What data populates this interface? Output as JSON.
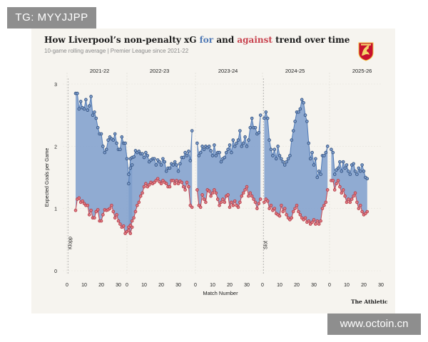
{
  "watermark_top": "TG: MYYJJPP",
  "watermark_bottom": "www.octoin.cn",
  "title": {
    "part1": "How Liverpool’s non-penalty xG ",
    "for": "for",
    "part2": " and ",
    "against": "against",
    "part3": " trend over time"
  },
  "subtitle": "10-game rolling average | Premier League since 2021-22",
  "brand": "The Athletic",
  "crest_icon": "liverbird-crest-icon",
  "colors": {
    "for": "#4f79b5",
    "for_fill": "#7e9dcc",
    "against": "#c8424e",
    "for_point": "#2e4d7a",
    "against_point": "#b23a45"
  },
  "chart_data": {
    "type": "area",
    "title": "How Liverpool’s non-penalty xG for and against trend over time",
    "subtitle": "10-game rolling average | Premier League since 2021-22",
    "xlabel": "Match Number",
    "ylabel": "Expected Goals per Game",
    "ylim": [
      0,
      3
    ],
    "yticks": [
      0,
      1,
      2,
      3
    ],
    "xticks": [
      0,
      10,
      20,
      30
    ],
    "xlim": [
      0,
      38
    ],
    "grid": true,
    "annotations": [
      {
        "season_index": 0,
        "match": 1,
        "text": "Klopp"
      },
      {
        "season_index": 3,
        "match": 1,
        "text": "Slot"
      }
    ],
    "seasons": [
      {
        "label": "2021-22",
        "x": [
          5,
          6,
          7,
          8,
          9,
          10,
          11,
          12,
          13,
          14,
          15,
          16,
          17,
          18,
          19,
          20,
          21,
          22,
          23,
          24,
          25,
          26,
          27,
          28,
          29,
          30,
          31,
          32,
          33,
          34,
          35,
          36,
          37,
          38
        ],
        "for": [
          2.85,
          2.85,
          2.6,
          2.72,
          2.62,
          2.6,
          2.75,
          2.58,
          2.65,
          2.8,
          2.5,
          2.55,
          2.45,
          2.3,
          2.2,
          2.2,
          2.0,
          1.9,
          1.95,
          2.1,
          2.15,
          2.12,
          2.1,
          2.2,
          2.05,
          1.95,
          1.95,
          2.15,
          2.05,
          2.05,
          1.8,
          1.55,
          1.65,
          1.7
        ],
        "against": [
          0.97,
          1.15,
          1.17,
          1.1,
          1.12,
          1.08,
          1.05,
          1.05,
          0.9,
          0.97,
          0.85,
          0.85,
          0.95,
          0.98,
          0.8,
          0.8,
          0.9,
          0.98,
          0.97,
          0.98,
          1.0,
          1.05,
          0.95,
          0.85,
          0.9,
          0.8,
          0.75,
          0.7,
          0.72,
          0.6,
          0.63,
          0.65,
          0.6,
          0.7
        ]
      },
      {
        "label": "2022-23",
        "x": [
          1,
          2,
          3,
          4,
          5,
          6,
          7,
          8,
          9,
          10,
          11,
          12,
          13,
          14,
          15,
          16,
          17,
          18,
          19,
          20,
          21,
          22,
          23,
          24,
          25,
          26,
          27,
          28,
          29,
          30,
          31,
          32,
          33,
          34,
          35,
          36,
          37,
          38
        ],
        "for": [
          1.4,
          1.8,
          1.82,
          1.83,
          1.93,
          1.9,
          1.92,
          1.88,
          1.88,
          1.82,
          1.9,
          1.85,
          1.75,
          1.78,
          1.8,
          1.8,
          1.7,
          1.78,
          1.75,
          1.7,
          1.8,
          1.75,
          1.6,
          1.65,
          1.65,
          1.72,
          1.7,
          1.75,
          1.7,
          1.6,
          1.72,
          1.82,
          1.82,
          1.9,
          1.85,
          1.92,
          1.77,
          2.25
        ],
        "against": [
          0.7,
          0.73,
          0.8,
          0.85,
          0.95,
          1.05,
          1.1,
          1.2,
          1.25,
          1.35,
          1.4,
          1.35,
          1.38,
          1.42,
          1.4,
          1.42,
          1.45,
          1.48,
          1.43,
          1.4,
          1.45,
          1.42,
          1.4,
          1.35,
          1.35,
          1.45,
          1.45,
          1.4,
          1.45,
          1.4,
          1.44,
          1.42,
          1.35,
          1.3,
          1.42,
          1.35,
          1.05,
          1.02
        ]
      },
      {
        "label": "2023-24",
        "x": [
          1,
          2,
          3,
          4,
          5,
          6,
          7,
          8,
          9,
          10,
          11,
          12,
          13,
          14,
          15,
          16,
          17,
          18,
          19,
          20,
          21,
          22,
          23,
          24,
          25,
          26,
          27,
          28,
          29,
          30,
          31,
          32,
          33,
          34,
          35,
          36,
          37,
          38
        ],
        "for": [
          2.05,
          1.85,
          1.9,
          2.0,
          1.95,
          2.0,
          1.98,
          2.0,
          1.93,
          1.85,
          2.02,
          1.85,
          1.9,
          1.9,
          1.75,
          1.8,
          1.82,
          1.9,
          1.95,
          2.02,
          1.9,
          2.1,
          2.0,
          2.05,
          2.1,
          2.25,
          2.0,
          2.05,
          2.15,
          2.0,
          2.1,
          2.3,
          2.45,
          2.3,
          2.3,
          2.2,
          2.22,
          2.5
        ],
        "against": [
          1.3,
          1.05,
          1.02,
          1.22,
          1.15,
          1.1,
          1.3,
          1.28,
          1.2,
          1.25,
          1.3,
          1.25,
          1.15,
          1.05,
          1.1,
          1.15,
          1.1,
          1.2,
          1.22,
          1.02,
          1.1,
          1.05,
          1.12,
          1.05,
          1.02,
          1.1,
          1.2,
          1.25,
          1.3,
          1.35,
          1.2,
          1.25,
          1.2,
          1.15,
          1.1,
          1.0,
          1.08,
          1.15
        ]
      },
      {
        "label": "2024-25",
        "x": [
          1,
          2,
          3,
          4,
          5,
          6,
          7,
          8,
          9,
          10,
          11,
          12,
          13,
          14,
          15,
          16,
          17,
          18,
          19,
          20,
          21,
          22,
          23,
          24,
          25,
          26,
          27,
          28,
          29,
          30,
          31,
          32,
          33,
          34,
          35,
          36,
          37,
          38
        ],
        "for": [
          2.45,
          2.55,
          2.45,
          2.1,
          1.95,
          1.85,
          1.95,
          1.8,
          2.0,
          1.85,
          1.8,
          1.75,
          1.7,
          1.75,
          1.8,
          1.85,
          2.1,
          2.25,
          2.4,
          2.55,
          2.55,
          2.6,
          2.75,
          2.7,
          2.5,
          2.4,
          2.05,
          1.8,
          1.9,
          1.7,
          1.8,
          1.5,
          1.6,
          1.55,
          1.85,
          1.85,
          1.9,
          2.0
        ],
        "against": [
          1.1,
          1.15,
          1.12,
          1.0,
          1.05,
          0.97,
          1.0,
          0.92,
          0.9,
          0.88,
          1.05,
          0.95,
          1.0,
          0.9,
          0.85,
          0.82,
          0.85,
          0.95,
          1.0,
          1.05,
          0.95,
          0.9,
          0.85,
          0.82,
          0.85,
          0.78,
          0.8,
          0.75,
          0.78,
          0.82,
          0.75,
          0.8,
          0.75,
          0.8,
          1.0,
          1.05,
          1.1,
          1.3
        ]
      },
      {
        "label": "2025-26",
        "x": [
          1,
          2,
          3,
          4,
          5,
          6,
          7,
          8,
          9,
          10,
          11,
          12,
          13,
          14,
          15,
          16,
          17,
          18,
          19,
          20,
          21,
          22
        ],
        "for": [
          1.95,
          1.9,
          1.55,
          1.62,
          1.65,
          1.75,
          1.6,
          1.75,
          1.65,
          1.7,
          1.6,
          1.55,
          1.7,
          1.72,
          1.6,
          1.55,
          1.65,
          1.6,
          1.7,
          1.6,
          1.5,
          1.48
        ],
        "against": [
          1.45,
          1.45,
          1.3,
          1.4,
          1.45,
          1.35,
          1.25,
          1.3,
          1.2,
          1.1,
          1.15,
          1.1,
          1.15,
          1.2,
          1.25,
          1.1,
          1.0,
          1.05,
          0.95,
          0.9,
          0.92,
          0.95
        ]
      }
    ]
  }
}
